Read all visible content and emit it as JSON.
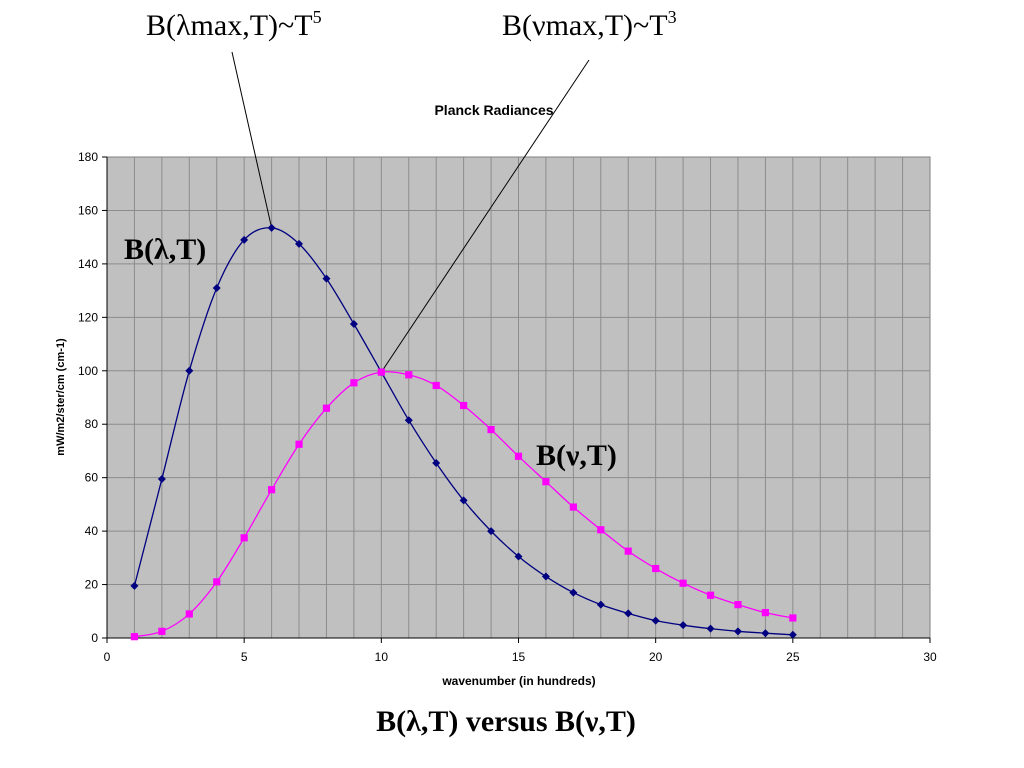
{
  "chart_data": {
    "type": "line",
    "title": "Planck Radiances",
    "xlabel": "wavenumber (in hundreds)",
    "ylabel": "mW/m2/ster/cm (cm-1)",
    "xlim": [
      0,
      30
    ],
    "ylim": [
      0,
      180
    ],
    "x_ticks": [
      0,
      5,
      10,
      15,
      20,
      25,
      30
    ],
    "y_ticks": [
      0,
      20,
      40,
      60,
      80,
      100,
      120,
      140,
      160,
      180
    ],
    "grid": true,
    "plot_background": "#c0c0c0",
    "series": [
      {
        "name": "B(λ,T)",
        "color": "#000080",
        "marker": "diamond",
        "x": [
          1,
          2,
          3,
          4,
          5,
          6,
          7,
          8,
          9,
          10,
          11,
          12,
          13,
          14,
          15,
          16,
          17,
          18,
          19,
          20,
          21,
          22,
          23,
          24,
          25
        ],
        "values": [
          19.5,
          59.5,
          100,
          131,
          149,
          153.5,
          147.5,
          134.5,
          117.5,
          99.5,
          81.5,
          65.5,
          51.5,
          40,
          30.5,
          23,
          17,
          12.5,
          9.2,
          6.5,
          4.8,
          3.5,
          2.5,
          1.8,
          1.2
        ]
      },
      {
        "name": "B(ν,T)",
        "color": "#ff00ff",
        "marker": "square",
        "x": [
          1,
          2,
          3,
          4,
          5,
          6,
          7,
          8,
          9,
          10,
          11,
          12,
          13,
          14,
          15,
          16,
          17,
          18,
          19,
          20,
          21,
          22,
          23,
          24,
          25
        ],
        "values": [
          0.5,
          2.5,
          9,
          21,
          37.5,
          55.5,
          72.5,
          86,
          95.5,
          99.5,
          98.5,
          94.5,
          87,
          78,
          68,
          58.5,
          49,
          40.5,
          32.5,
          26,
          20.5,
          16,
          12.5,
          9.5,
          7.5
        ]
      }
    ],
    "annotations": {
      "lambda_curve_label": "B(λ,T)",
      "nu_curve_label": "B(ν,T)",
      "lambda_max_text": "B(λmax,T)~T",
      "lambda_max_exp": "5",
      "nu_max_text": "B(νmax,T)~T",
      "nu_max_exp": "3",
      "lambda_max_point": [
        6,
        153.5
      ],
      "nu_max_point": [
        10,
        99.5
      ]
    },
    "caption": "B(λ,T) versus B(ν,T)"
  }
}
